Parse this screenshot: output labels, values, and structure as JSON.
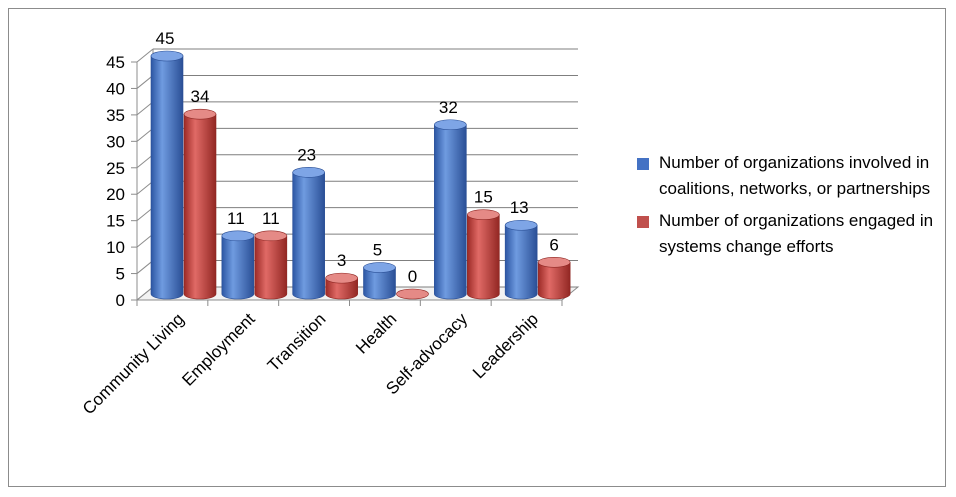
{
  "chart_data": {
    "type": "bar",
    "categories": [
      "Community Living",
      "Employment",
      "Transition",
      "Health",
      "Self-advocacy",
      "Leadership"
    ],
    "series": [
      {
        "name": "Number of organizations involved in coalitions, networks, or partnerships",
        "values": [
          45,
          11,
          23,
          5,
          32,
          13
        ],
        "color": "#4472C4"
      },
      {
        "name": "Number of organizations engaged in systems change efforts",
        "values": [
          34,
          11,
          3,
          0,
          15,
          6
        ],
        "color": "#C0504D"
      }
    ],
    "ylim": [
      0,
      45
    ],
    "yticks": [
      0,
      5,
      10,
      15,
      20,
      25,
      30,
      35,
      40,
      45
    ],
    "title": "",
    "xlabel": "",
    "ylabel": "",
    "grid": true,
    "legend_position": "right",
    "style": "3d-cylinder"
  }
}
